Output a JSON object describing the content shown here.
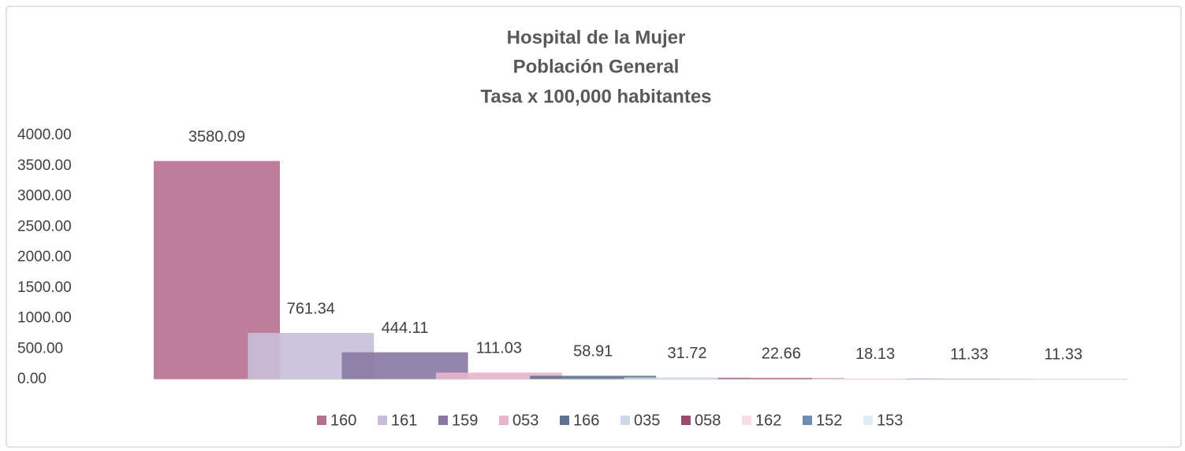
{
  "chart_data": {
    "type": "bar",
    "title": [
      "Hospital de la Mujer",
      "Población General",
      "Tasa x 100,000 habitantes"
    ],
    "ylim": [
      0,
      4000
    ],
    "yticks": [
      {
        "value": 0,
        "label": "0.00"
      },
      {
        "value": 500,
        "label": "500.00"
      },
      {
        "value": 1000,
        "label": "1000.00"
      },
      {
        "value": 1500,
        "label": "1500.00"
      },
      {
        "value": 2000,
        "label": "2000.00"
      },
      {
        "value": 2500,
        "label": "2500.00"
      },
      {
        "value": 3000,
        "label": "3000.00"
      },
      {
        "value": 3500,
        "label": "3500.00"
      },
      {
        "value": 4000,
        "label": "4000.00"
      }
    ],
    "grid": false,
    "legend": "bottom",
    "series": [
      {
        "name": "160",
        "color": "#b5708f",
        "values": [
          3580.09
        ]
      },
      {
        "name": "161",
        "color": "#c9bdd9",
        "values": [
          761.34
        ]
      },
      {
        "name": "159",
        "color": "#8a78a2",
        "values": [
          444.11
        ]
      },
      {
        "name": "053",
        "color": "#e8b4cc",
        "values": [
          111.03
        ]
      },
      {
        "name": "166",
        "color": "#5f7390",
        "values": [
          58.91
        ]
      },
      {
        "name": "035",
        "color": "#cbd8e8",
        "values": [
          31.72
        ]
      },
      {
        "name": "058",
        "color": "#9b4a70",
        "values": [
          22.66
        ]
      },
      {
        "name": "162",
        "color": "#f5dce6",
        "values": [
          18.13
        ]
      },
      {
        "name": "152",
        "color": "#6f8db5",
        "values": [
          11.33
        ]
      },
      {
        "name": "153",
        "color": "#ddeef4",
        "values": [
          11.33
        ]
      }
    ]
  }
}
